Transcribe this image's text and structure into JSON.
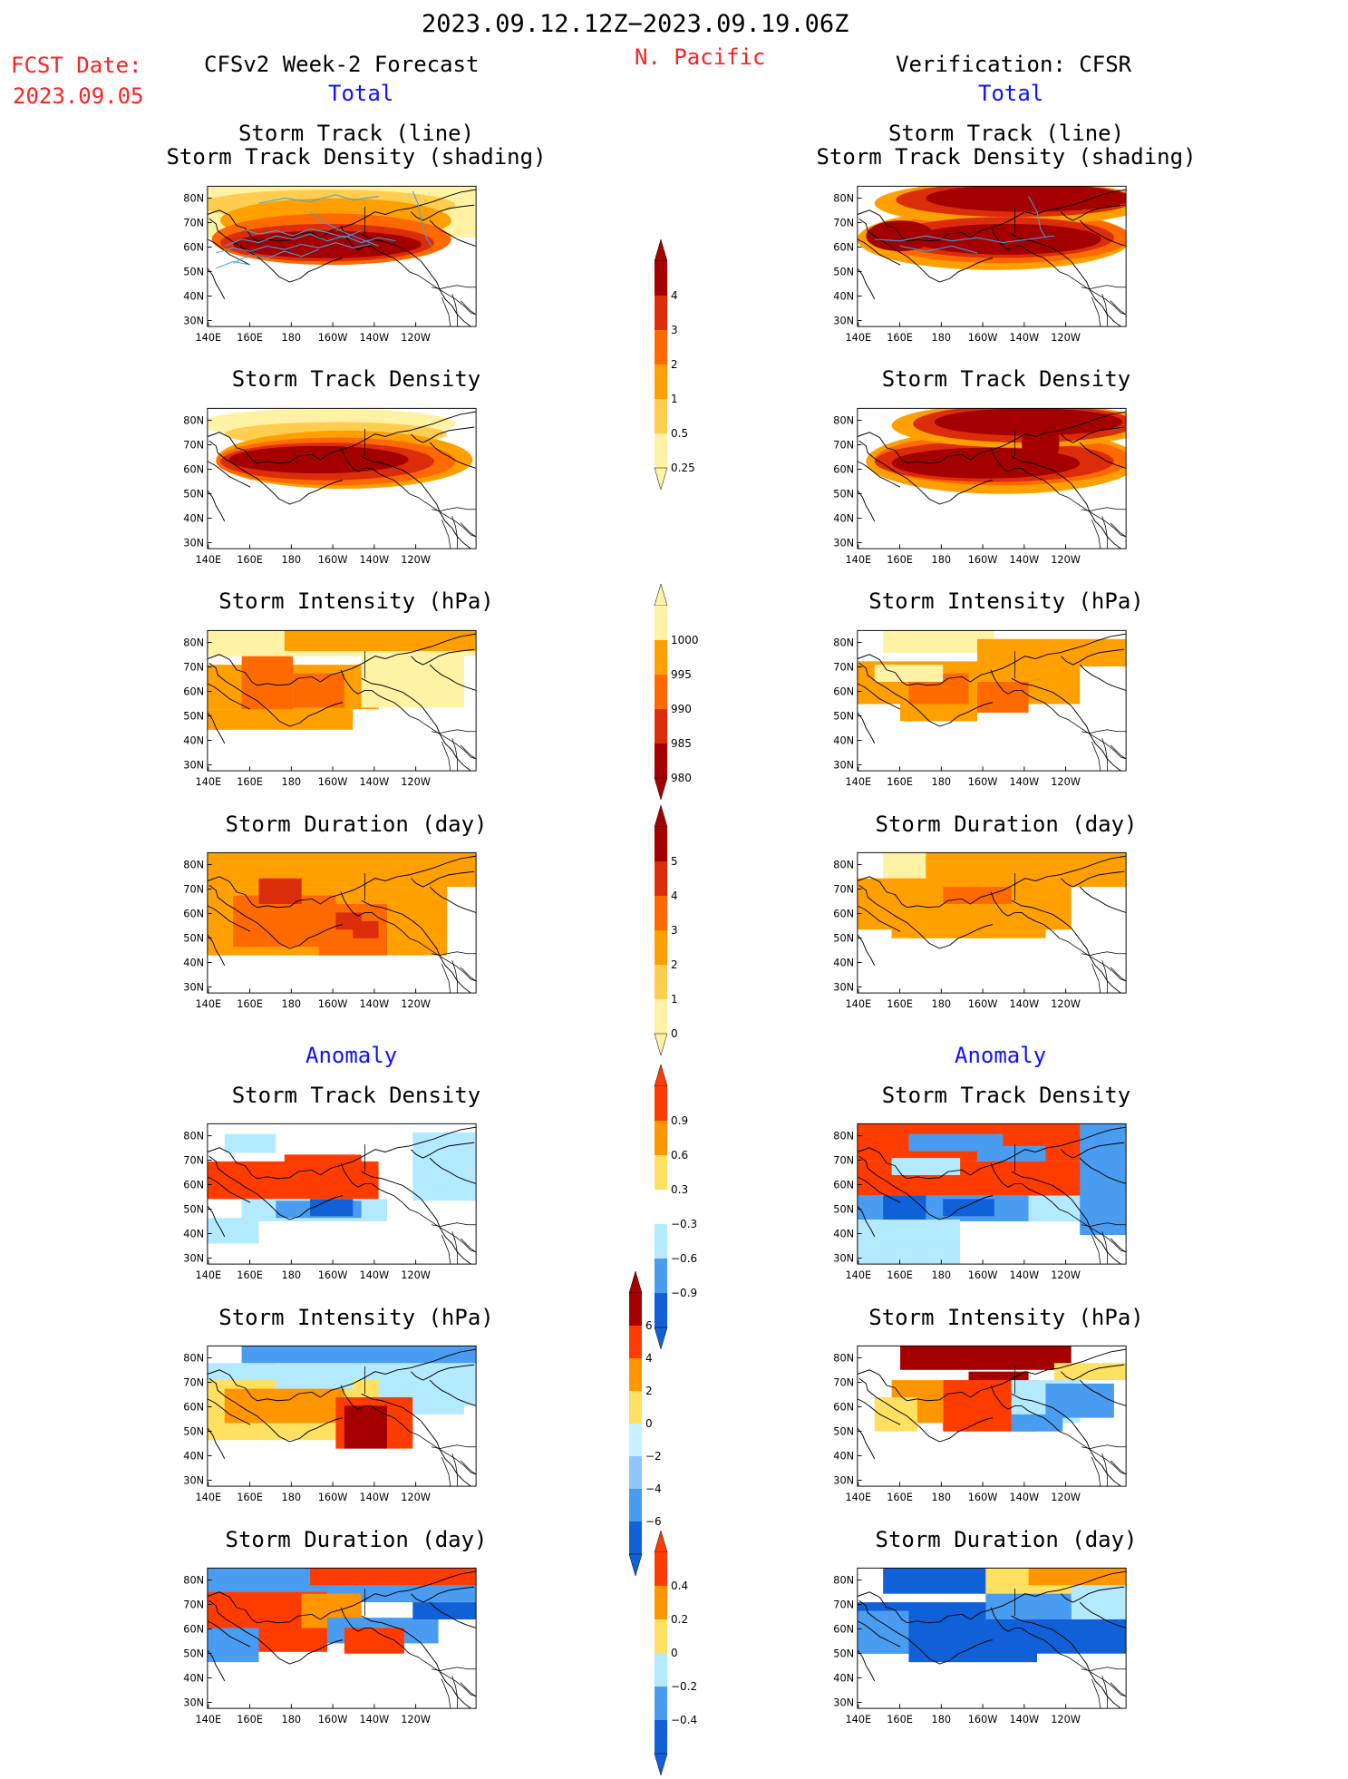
{
  "header": {
    "period": "2023.09.12.12Z−2023.09.19.06Z",
    "fcst_date_label": "FCST Date:",
    "fcst_date": "2023.09.05",
    "forecast_title": "CFSv2 Week-2 Forecast",
    "region": "N. Pacific",
    "verification_title": "Verification: CFSR",
    "left_total": "Total",
    "right_total": "Total",
    "left_anomaly": "Anomaly",
    "right_anomaly": "Anomaly"
  },
  "panel_titles": {
    "track_line": "Storm Track (line)",
    "track_density_shading": "Storm Track Density (shading)",
    "track_density": "Storm Track Density",
    "intensity": "Storm Intensity (hPa)",
    "duration": "Storm Duration (day)"
  },
  "axes": {
    "lat_labels": [
      "80N",
      "70N",
      "60N",
      "50N",
      "40N",
      "30N"
    ],
    "lon_labels": [
      "140E",
      "160E",
      "180",
      "160W",
      "140W",
      "120W"
    ]
  },
  "colorbars": {
    "density_total": {
      "labels": [
        "4",
        "3",
        "2",
        "1",
        "0.5",
        "0.25"
      ],
      "colors": [
        "#a50000",
        "#dc2d0a",
        "#ff6a00",
        "#ffa000",
        "#ffcd50",
        "#fff2a5"
      ]
    },
    "intensity_total": {
      "labels": [
        "1000",
        "995",
        "990",
        "985",
        "980"
      ],
      "colors": [
        "#fff2a5",
        "#ffa000",
        "#ff6a00",
        "#dc2d0a",
        "#a50000"
      ]
    },
    "duration_total": {
      "labels": [
        "5",
        "4",
        "3",
        "2",
        "1",
        "0"
      ],
      "colors": [
        "#a50000",
        "#dc2d0a",
        "#ff6a00",
        "#ffa000",
        "#ffcd50",
        "#fff2a5"
      ]
    },
    "density_anom": {
      "labels": [
        "0.9",
        "0.6",
        "0.3",
        "−0.3",
        "−0.6",
        "−0.9"
      ],
      "colors": [
        "#ff3c00",
        "#ff9600",
        "#ffe060",
        "#ffffff",
        "#b4eaff",
        "#4a9cf0",
        "#1060d8"
      ]
    },
    "intensity_anom": {
      "labels": [
        "6",
        "4",
        "2",
        "0",
        "−2",
        "−4",
        "−6"
      ],
      "colors": [
        "#a50000",
        "#ff3c00",
        "#ff9600",
        "#ffe060",
        "#c8f0ff",
        "#8cc8ff",
        "#4a9cf0",
        "#1060d8"
      ]
    },
    "duration_anom": {
      "labels": [
        "0.4",
        "0.2",
        "0",
        "−0.2",
        "−0.4"
      ],
      "colors": [
        "#ff3c00",
        "#ff9600",
        "#ffe060",
        "#b4eaff",
        "#4a9cf0",
        "#1060d8"
      ]
    }
  }
}
